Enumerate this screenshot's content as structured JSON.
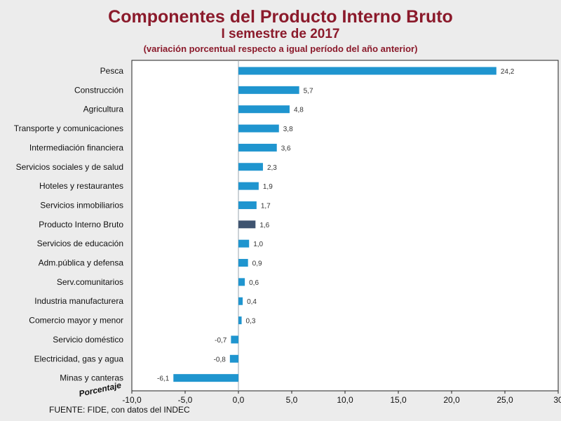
{
  "header": {
    "title": "Componentes del Producto Interno Bruto",
    "subtitle": "I semestre de 2017",
    "note": "(variación porcentual respecto a igual período del año anterior)"
  },
  "footer": {
    "source": "FUENTE: FIDE, con datos del INDEC",
    "unit_label": "Porcentaje"
  },
  "colors": {
    "bar": "#1f95cf",
    "highlight": "#3f5470",
    "title": "#8b1a2b"
  },
  "chart_data": {
    "type": "bar",
    "orientation": "horizontal",
    "title": "Componentes del Producto Interno Bruto",
    "xlabel": "Porcentaje",
    "ylabel": "",
    "xlim": [
      -10,
      30
    ],
    "xticks": [
      -10,
      -5,
      0,
      5,
      10,
      15,
      20,
      25,
      30
    ],
    "xtick_labels": [
      "-10,0",
      "-5,0",
      "0,0",
      "5,0",
      "10,0",
      "15,0",
      "20,0",
      "25,0",
      "30"
    ],
    "categories": [
      "Pesca",
      "Construcción",
      "Agricultura",
      "Transporte y comunicaciones",
      "Intermediación financiera",
      "Servicios sociales y de salud",
      "Hoteles y restaurantes",
      "Servicios inmobiliarios",
      "Producto Interno Bruto",
      "Servicios de educación",
      "Adm.pública y defensa",
      "Serv.comunitarios",
      "Industria manufacturera",
      "Comercio mayor y menor",
      "Servicio doméstico",
      "Electricidad, gas y agua",
      "Minas y canteras"
    ],
    "values": [
      24.2,
      5.7,
      4.8,
      3.8,
      3.6,
      2.3,
      1.9,
      1.7,
      1.6,
      1.0,
      0.9,
      0.6,
      0.4,
      0.3,
      -0.7,
      -0.8,
      -6.1
    ],
    "value_labels": [
      "24,2",
      "5,7",
      "4,8",
      "3,8",
      "3,6",
      "2,3",
      "1,9",
      "1,7",
      "1,6",
      "1,0",
      "0,9",
      "0,6",
      "0,4",
      "0,3",
      "-0,7",
      "-0,8",
      "-6,1"
    ],
    "highlight_category": "Producto Interno Bruto",
    "grid": false,
    "legend": "none"
  }
}
